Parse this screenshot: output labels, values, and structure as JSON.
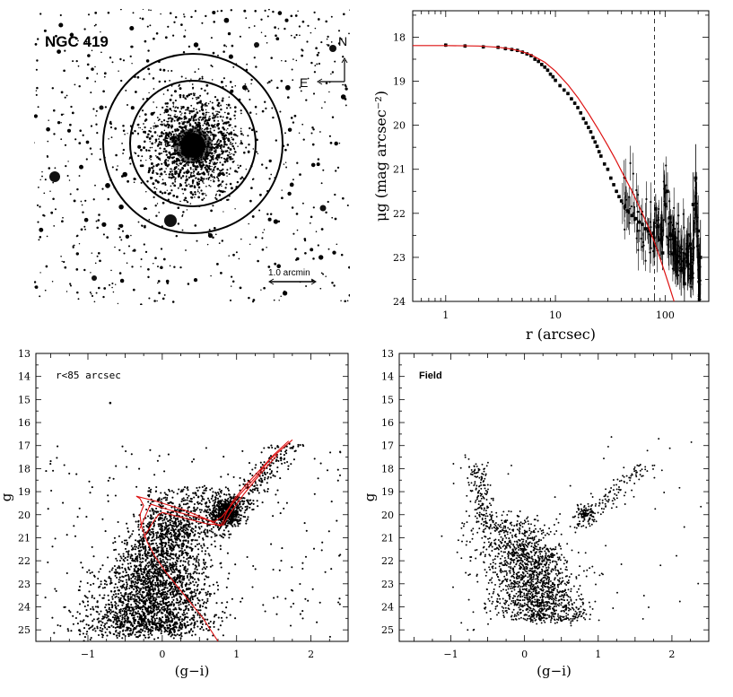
{
  "image_panel": {
    "title": "NGC 419",
    "north_label": "N",
    "east_label": "E",
    "scale_label": "1.0 arcmin"
  },
  "chart_data": [
    {
      "type": "scatter",
      "name": "surface-brightness-profile",
      "title": "",
      "xlabel": "r (arcsec)",
      "ylabel": "μg (mag arcsec⁻²)",
      "xscale": "log",
      "xlim": [
        0.5,
        250
      ],
      "ylim": [
        24,
        17.4
      ],
      "xticks": [
        1,
        10,
        100
      ],
      "xtick_labels": [
        "1",
        "10",
        "100"
      ],
      "yticks": [
        18,
        19,
        20,
        21,
        22,
        23,
        24
      ],
      "ytick_labels": [
        "18",
        "19",
        "20",
        "21",
        "22",
        "23",
        "24"
      ],
      "tidal_radius_marker": 80,
      "observed": {
        "r": [
          1.0,
          1.5,
          2.2,
          3.0,
          3.5,
          4.0,
          4.5,
          5.0,
          5.5,
          6.0,
          6.5,
          7.0,
          7.5,
          8.0,
          8.5,
          9.0,
          9.5,
          10.0,
          11.0,
          12.0,
          13.0,
          14.0,
          15.0,
          16.0,
          17.0,
          18.0,
          19.0,
          20.0,
          21.0,
          22.0,
          23.0,
          24.0,
          25.0,
          26.0,
          28.0,
          30.0,
          32.0,
          34.0,
          36.0,
          38.0,
          40.0,
          43.0,
          46.0,
          50.0,
          54.0,
          58.0,
          62.0,
          66.0,
          70.0,
          74.0,
          78.0,
          82.0,
          86.0,
          90.0,
          95.0,
          100.0,
          105.0,
          110.0,
          115.0,
          120.0,
          130.0,
          140.0,
          150.0,
          160.0,
          170.0,
          180.0,
          190.0,
          200.0,
          210.0
        ],
        "mu": [
          18.18,
          18.2,
          18.22,
          18.23,
          18.26,
          18.28,
          18.3,
          18.34,
          18.38,
          18.42,
          18.5,
          18.55,
          18.62,
          18.68,
          18.75,
          18.84,
          18.9,
          18.98,
          19.1,
          19.2,
          19.28,
          19.4,
          19.5,
          19.6,
          19.72,
          19.85,
          19.95,
          20.05,
          20.15,
          20.28,
          20.38,
          20.48,
          20.6,
          20.7,
          20.88,
          21.0,
          21.2,
          21.35,
          21.5,
          21.62,
          21.72,
          21.85,
          21.95,
          22.05,
          22.12,
          22.2,
          22.25,
          22.35,
          22.4,
          22.5,
          22.45,
          21.9,
          22.3,
          22.6,
          22.9,
          21.8,
          21.5,
          22.1,
          22.5,
          22.9,
          23.1,
          23.3,
          23.6,
          23.1,
          22.7,
          21.8,
          21.2,
          22.4,
          23.0
        ]
      },
      "model": {
        "r": [
          0.5,
          1,
          2,
          3,
          4,
          5,
          6,
          8,
          10,
          13,
          16,
          20,
          25,
          30,
          35,
          40,
          50,
          60,
          70,
          80,
          90,
          100,
          110,
          120,
          130
        ],
        "mu": [
          18.19,
          18.19,
          18.2,
          18.23,
          18.27,
          18.33,
          18.4,
          18.57,
          18.77,
          19.08,
          19.37,
          19.73,
          20.12,
          20.46,
          20.76,
          21.04,
          21.5,
          21.92,
          22.3,
          22.66,
          23.02,
          23.36,
          23.68,
          23.98,
          24.3
        ]
      }
    },
    {
      "type": "scatter",
      "name": "cmd-cluster",
      "annotation": "r<85 arcsec",
      "xlabel": "(g−i)",
      "ylabel": "g",
      "xlim": [
        -1.7,
        2.5
      ],
      "ylim": [
        25.5,
        13
      ],
      "xticks": [
        -1,
        0,
        1,
        2
      ],
      "xtick_labels": [
        "−1",
        "0",
        "1",
        "2"
      ],
      "yticks": [
        13,
        14,
        15,
        16,
        17,
        18,
        19,
        20,
        21,
        22,
        23,
        24,
        25
      ],
      "ytick_labels": [
        "13",
        "14",
        "15",
        "16",
        "17",
        "18",
        "19",
        "20",
        "21",
        "22",
        "23",
        "24",
        "25"
      ],
      "isochrones": [
        {
          "x": [
            0.75,
            0.55,
            0.3,
            0.05,
            -0.1,
            -0.2,
            -0.28,
            -0.3,
            -0.25,
            -0.3,
            -0.35,
            -0.1,
            0.3,
            0.6,
            0.78,
            0.82,
            0.85,
            0.95,
            1.1,
            1.3,
            1.5,
            1.7
          ],
          "y": [
            25.5,
            24.5,
            23.5,
            22.5,
            21.8,
            21.2,
            20.5,
            20.0,
            19.6,
            19.3,
            19.2,
            19.4,
            19.8,
            20.2,
            20.5,
            20.3,
            20.0,
            19.4,
            18.8,
            18.1,
            17.4,
            16.8
          ]
        },
        {
          "x": [
            -0.3,
            -0.22,
            -0.18,
            -0.15,
            0.1,
            0.4,
            0.7,
            0.8,
            0.9,
            1.05,
            1.25,
            1.45,
            1.75
          ],
          "y": [
            20.6,
            20.0,
            19.7,
            19.55,
            19.8,
            20.05,
            20.3,
            20.1,
            19.7,
            19.1,
            18.4,
            17.6,
            16.75
          ]
        },
        {
          "x": [
            -0.25,
            -0.12,
            -0.05,
            0.0,
            0.3,
            0.6,
            0.82,
            0.92,
            1.1,
            1.3,
            1.55
          ],
          "y": [
            21.0,
            20.3,
            20.0,
            19.9,
            20.15,
            20.4,
            20.45,
            19.9,
            19.1,
            18.3,
            17.4
          ]
        }
      ]
    },
    {
      "type": "scatter",
      "name": "cmd-field",
      "annotation": "Field",
      "xlabel": "(g−i)",
      "ylabel": "g",
      "xlim": [
        -1.7,
        2.5
      ],
      "ylim": [
        25.5,
        13
      ],
      "xticks": [
        -1,
        0,
        1,
        2
      ],
      "xtick_labels": [
        "−1",
        "0",
        "1",
        "2"
      ],
      "yticks": [
        13,
        14,
        15,
        16,
        17,
        18,
        19,
        20,
        21,
        22,
        23,
        24,
        25
      ],
      "ytick_labels": [
        "13",
        "14",
        "15",
        "16",
        "17",
        "18",
        "19",
        "20",
        "21",
        "22",
        "23",
        "24",
        "25"
      ]
    }
  ]
}
